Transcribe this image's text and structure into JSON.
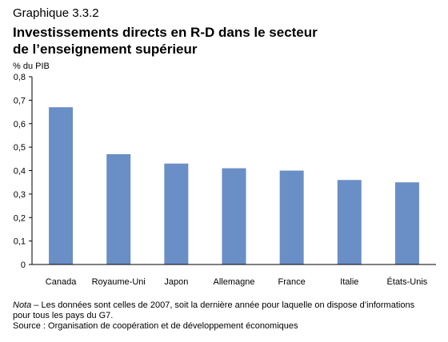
{
  "header": {
    "supertitle": "Graphique 3.3.2",
    "title_line1": "Investissements directs en R-D dans le secteur",
    "title_line2": "de l’enseignement supérieur"
  },
  "chart_data": {
    "type": "bar",
    "ylabel": "% du PIB",
    "xlabel": "",
    "ylim": [
      0,
      0.8
    ],
    "yticks": [
      "0",
      "0,1",
      "0,2",
      "0,3",
      "0,4",
      "0,5",
      "0,6",
      "0,7",
      "0,8"
    ],
    "categories": [
      "Canada",
      "Royaume-Uni",
      "Japon",
      "Allemagne",
      "France",
      "Italie",
      "États-Unis"
    ],
    "values": [
      0.67,
      0.47,
      0.43,
      0.41,
      0.4,
      0.36,
      0.35
    ],
    "bar_color": "#6a8ec6",
    "grid": false
  },
  "footer": {
    "note_lead": "Nota",
    "note_text": " – Les données sont celles de 2007, soit la dernière année pour laquelle on dispose d’informations pour tous les pays du G7.",
    "source": "Source : Organisation de coopération et de développement économiques"
  }
}
